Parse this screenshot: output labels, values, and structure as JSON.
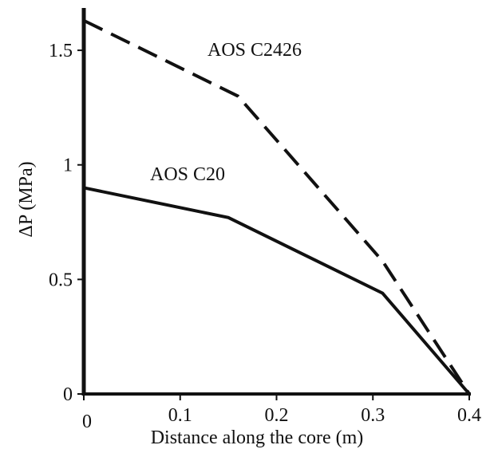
{
  "chart_data": {
    "type": "line",
    "xlabel": "Distance along the core (m)",
    "ylabel": "ΔP (MPa)",
    "xlim": [
      0,
      0.4
    ],
    "ylim": [
      0,
      1.65
    ],
    "x_ticks": [
      0,
      0.1,
      0.2,
      0.3,
      0.4
    ],
    "x_tick_labels": [
      "0",
      "0.1",
      "0.2",
      "0.3",
      "0.4"
    ],
    "y_ticks": [
      0,
      0.5,
      1,
      1.5
    ],
    "y_tick_labels": [
      "0",
      "0.5",
      "1",
      "1.5"
    ],
    "grid": false,
    "legend": "none",
    "series": [
      {
        "name": "AOS C2426",
        "line_style": "dashed",
        "color": "#111111",
        "x": [
          0,
          0.16,
          0.31,
          0.4
        ],
        "y": [
          1.63,
          1.3,
          0.58,
          0.0
        ]
      },
      {
        "name": "AOS C20",
        "line_style": "solid",
        "color": "#111111",
        "x": [
          0,
          0.15,
          0.31,
          0.4
        ],
        "y": [
          0.9,
          0.77,
          0.44,
          0.0
        ]
      }
    ]
  }
}
